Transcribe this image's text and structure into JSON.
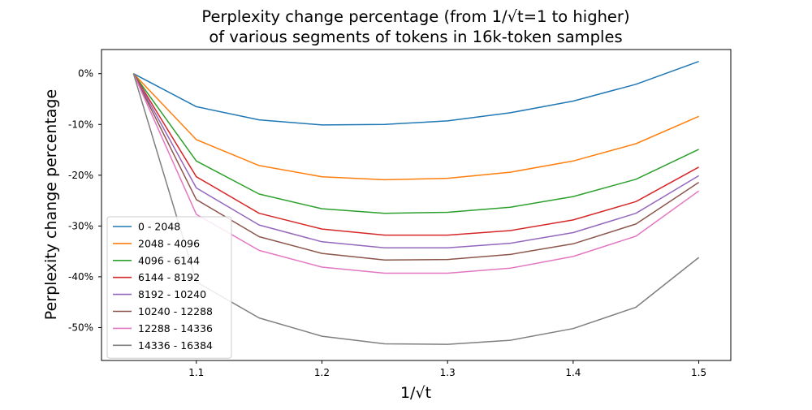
{
  "chart_data": {
    "type": "line",
    "title_lines": [
      "Perplexity change percentage (from 1/√t=1 to higher)",
      "of various segments of tokens in 16k-token samples"
    ],
    "xlabel": "1/√t",
    "ylabel": "Perplexity change percentage",
    "xlim": [
      1.0245,
      1.5255
    ],
    "ylim": [
      -0.5648,
      0.0475
    ],
    "x": [
      1.05,
      1.1,
      1.15,
      1.2,
      1.25,
      1.3,
      1.35,
      1.4,
      1.45,
      1.5
    ],
    "x_ticks": [
      1.1,
      1.2,
      1.3,
      1.4,
      1.5
    ],
    "x_tick_labels": [
      "1.1",
      "1.2",
      "1.3",
      "1.4",
      "1.5"
    ],
    "y_ticks": [
      0,
      -0.1,
      -0.2,
      -0.3,
      -0.4,
      -0.5
    ],
    "y_tick_labels": [
      "0%",
      "-10%",
      "-20%",
      "-30%",
      "-40%",
      "-50%"
    ],
    "grid": false,
    "legend_position": "lower-left",
    "series": [
      {
        "name": "0 - 2048",
        "color": "#1f77b4",
        "values": [
          0,
          -0.065,
          -0.091,
          -0.101,
          -0.1,
          -0.093,
          -0.077,
          -0.054,
          -0.021,
          0.024
        ]
      },
      {
        "name": "2048 - 4096",
        "color": "#ff7f0e",
        "values": [
          0,
          -0.13,
          -0.181,
          -0.203,
          -0.209,
          -0.206,
          -0.194,
          -0.172,
          -0.138,
          -0.084
        ]
      },
      {
        "name": "4096 - 6144",
        "color": "#2ca02c",
        "values": [
          0,
          -0.172,
          -0.237,
          -0.266,
          -0.275,
          -0.273,
          -0.263,
          -0.242,
          -0.208,
          -0.149
        ]
      },
      {
        "name": "6144 - 8192",
        "color": "#d62728",
        "values": [
          0,
          -0.203,
          -0.275,
          -0.306,
          -0.318,
          -0.318,
          -0.309,
          -0.288,
          -0.252,
          -0.184
        ]
      },
      {
        "name": "8192 - 10240",
        "color": "#9467bd",
        "values": [
          0,
          -0.225,
          -0.298,
          -0.331,
          -0.343,
          -0.343,
          -0.334,
          -0.313,
          -0.275,
          -0.201
        ]
      },
      {
        "name": "10240 - 12288",
        "color": "#8c564b",
        "values": [
          0,
          -0.248,
          -0.321,
          -0.354,
          -0.367,
          -0.366,
          -0.356,
          -0.335,
          -0.296,
          -0.214
        ]
      },
      {
        "name": "12288 - 14336",
        "color": "#e377c2",
        "values": [
          0,
          -0.277,
          -0.348,
          -0.381,
          -0.393,
          -0.393,
          -0.383,
          -0.36,
          -0.32,
          -0.231
        ]
      },
      {
        "name": "14336 - 16384",
        "color": "#7f7f7f",
        "values": [
          0,
          -0.41,
          -0.481,
          -0.517,
          -0.532,
          -0.533,
          -0.525,
          -0.502,
          -0.46,
          -0.362
        ]
      }
    ]
  }
}
